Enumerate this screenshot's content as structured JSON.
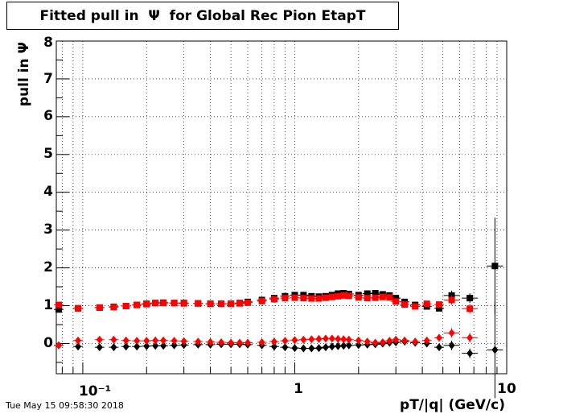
{
  "chart_data": {
    "type": "scatter",
    "title": "Fitted pull in  Ψ  for Global Rec Pion EtapT",
    "xlabel": "pT/|q| (GeV/c)",
    "ylabel": "pull in  Ψ",
    "x_scale": "log",
    "xlim": [
      0.075,
      10
    ],
    "ylim": [
      -0.8,
      8
    ],
    "grid": true,
    "x_tick_labels": [
      "10⁻¹",
      "1",
      "10"
    ],
    "y_tick_labels": [
      "0",
      "1",
      "2",
      "3",
      "4",
      "5",
      "6",
      "7",
      "8"
    ],
    "colors": {
      "black": "#000000",
      "red": "#ff0000"
    },
    "series": [
      {
        "marker": "square",
        "color": "#000000",
        "points": [
          [
            0.077,
            0.9
          ],
          [
            0.095,
            0.93
          ],
          [
            0.12,
            0.95
          ],
          [
            0.14,
            0.97
          ],
          [
            0.16,
            0.99
          ],
          [
            0.18,
            1.02
          ],
          [
            0.2,
            1.05
          ],
          [
            0.22,
            1.07
          ],
          [
            0.24,
            1.08
          ],
          [
            0.27,
            1.07
          ],
          [
            0.3,
            1.07
          ],
          [
            0.35,
            1.06
          ],
          [
            0.4,
            1.05
          ],
          [
            0.45,
            1.05
          ],
          [
            0.5,
            1.05
          ],
          [
            0.55,
            1.07
          ],
          [
            0.6,
            1.1
          ],
          [
            0.7,
            1.15
          ],
          [
            0.8,
            1.2
          ],
          [
            0.9,
            1.25
          ],
          [
            1.0,
            1.28
          ],
          [
            1.1,
            1.28
          ],
          [
            1.2,
            1.25
          ],
          [
            1.3,
            1.24
          ],
          [
            1.4,
            1.25
          ],
          [
            1.5,
            1.28
          ],
          [
            1.6,
            1.32
          ],
          [
            1.7,
            1.33
          ],
          [
            1.8,
            1.31
          ],
          [
            2.0,
            1.28
          ],
          [
            2.2,
            1.32
          ],
          [
            2.4,
            1.33
          ],
          [
            2.6,
            1.3
          ],
          [
            2.8,
            1.27
          ],
          [
            3.0,
            1.2
          ],
          [
            3.3,
            1.1
          ],
          [
            3.7,
            1.02
          ],
          [
            4.2,
            0.98
          ],
          [
            4.8,
            0.93
          ],
          [
            5.5,
            1.27
          ],
          [
            6.7,
            1.2
          ],
          [
            8.8,
            2.05
          ]
        ]
      },
      {
        "marker": "square",
        "color": "#ff0000",
        "points": [
          [
            0.077,
            1.02
          ],
          [
            0.095,
            0.93
          ],
          [
            0.12,
            0.95
          ],
          [
            0.14,
            0.96
          ],
          [
            0.16,
            0.99
          ],
          [
            0.18,
            1.02
          ],
          [
            0.2,
            1.04
          ],
          [
            0.22,
            1.07
          ],
          [
            0.24,
            1.07
          ],
          [
            0.27,
            1.07
          ],
          [
            0.3,
            1.06
          ],
          [
            0.35,
            1.06
          ],
          [
            0.4,
            1.05
          ],
          [
            0.45,
            1.05
          ],
          [
            0.5,
            1.05
          ],
          [
            0.55,
            1.06
          ],
          [
            0.6,
            1.08
          ],
          [
            0.7,
            1.12
          ],
          [
            0.8,
            1.17
          ],
          [
            0.9,
            1.2
          ],
          [
            1.0,
            1.21
          ],
          [
            1.1,
            1.2
          ],
          [
            1.2,
            1.19
          ],
          [
            1.3,
            1.19
          ],
          [
            1.4,
            1.21
          ],
          [
            1.5,
            1.23
          ],
          [
            1.6,
            1.25
          ],
          [
            1.7,
            1.27
          ],
          [
            1.8,
            1.26
          ],
          [
            2.0,
            1.22
          ],
          [
            2.2,
            1.2
          ],
          [
            2.4,
            1.21
          ],
          [
            2.6,
            1.23
          ],
          [
            2.8,
            1.22
          ],
          [
            3.0,
            1.11
          ],
          [
            3.3,
            1.03
          ],
          [
            3.7,
            0.98
          ],
          [
            4.2,
            1.05
          ],
          [
            4.8,
            1.03
          ],
          [
            5.5,
            1.15
          ],
          [
            6.7,
            0.92
          ]
        ]
      },
      {
        "marker": "diamond",
        "color": "#000000",
        "points": [
          [
            0.077,
            -0.05
          ],
          [
            0.095,
            -0.08
          ],
          [
            0.12,
            -0.1
          ],
          [
            0.14,
            -0.1
          ],
          [
            0.16,
            -0.08
          ],
          [
            0.18,
            -0.08
          ],
          [
            0.2,
            -0.07
          ],
          [
            0.22,
            -0.06
          ],
          [
            0.24,
            -0.06
          ],
          [
            0.27,
            -0.05
          ],
          [
            0.3,
            -0.04
          ],
          [
            0.35,
            -0.03
          ],
          [
            0.4,
            -0.03
          ],
          [
            0.45,
            -0.02
          ],
          [
            0.5,
            -0.02
          ],
          [
            0.55,
            -0.02
          ],
          [
            0.6,
            -0.03
          ],
          [
            0.7,
            -0.05
          ],
          [
            0.8,
            -0.08
          ],
          [
            0.9,
            -0.1
          ],
          [
            1.0,
            -0.12
          ],
          [
            1.1,
            -0.13
          ],
          [
            1.2,
            -0.13
          ],
          [
            1.3,
            -0.12
          ],
          [
            1.4,
            -0.1
          ],
          [
            1.5,
            -0.08
          ],
          [
            1.6,
            -0.07
          ],
          [
            1.7,
            -0.06
          ],
          [
            1.8,
            -0.05
          ],
          [
            2.0,
            -0.04
          ],
          [
            2.2,
            -0.03
          ],
          [
            2.4,
            -0.02
          ],
          [
            2.6,
            0.0
          ],
          [
            2.8,
            0.02
          ],
          [
            3.0,
            0.03
          ],
          [
            3.3,
            0.05
          ],
          [
            3.7,
            0.02
          ],
          [
            4.2,
            0.0
          ],
          [
            4.8,
            -0.1
          ],
          [
            5.5,
            -0.05
          ],
          [
            6.7,
            -0.26
          ],
          [
            8.8,
            -0.17
          ]
        ]
      },
      {
        "marker": "diamond",
        "color": "#ff0000",
        "points": [
          [
            0.077,
            -0.05
          ],
          [
            0.095,
            0.08
          ],
          [
            0.12,
            0.1
          ],
          [
            0.14,
            0.1
          ],
          [
            0.16,
            0.08
          ],
          [
            0.18,
            0.07
          ],
          [
            0.2,
            0.07
          ],
          [
            0.22,
            0.08
          ],
          [
            0.24,
            0.08
          ],
          [
            0.27,
            0.07
          ],
          [
            0.3,
            0.06
          ],
          [
            0.35,
            0.05
          ],
          [
            0.4,
            0.04
          ],
          [
            0.45,
            0.03
          ],
          [
            0.5,
            0.02
          ],
          [
            0.55,
            0.02
          ],
          [
            0.6,
            0.02
          ],
          [
            0.7,
            0.03
          ],
          [
            0.8,
            0.05
          ],
          [
            0.9,
            0.07
          ],
          [
            1.0,
            0.09
          ],
          [
            1.1,
            0.1
          ],
          [
            1.2,
            0.11
          ],
          [
            1.3,
            0.12
          ],
          [
            1.4,
            0.13
          ],
          [
            1.5,
            0.13
          ],
          [
            1.6,
            0.12
          ],
          [
            1.7,
            0.11
          ],
          [
            1.8,
            0.1
          ],
          [
            2.0,
            0.08
          ],
          [
            2.2,
            0.05
          ],
          [
            2.4,
            0.02
          ],
          [
            2.6,
            0.03
          ],
          [
            2.8,
            0.07
          ],
          [
            3.0,
            0.1
          ],
          [
            3.3,
            0.08
          ],
          [
            3.7,
            0.05
          ],
          [
            4.2,
            0.08
          ],
          [
            4.8,
            0.15
          ],
          [
            5.5,
            0.28
          ],
          [
            6.7,
            0.15
          ]
        ]
      }
    ],
    "footer": "Tue May 15 09:58:30 2018"
  }
}
